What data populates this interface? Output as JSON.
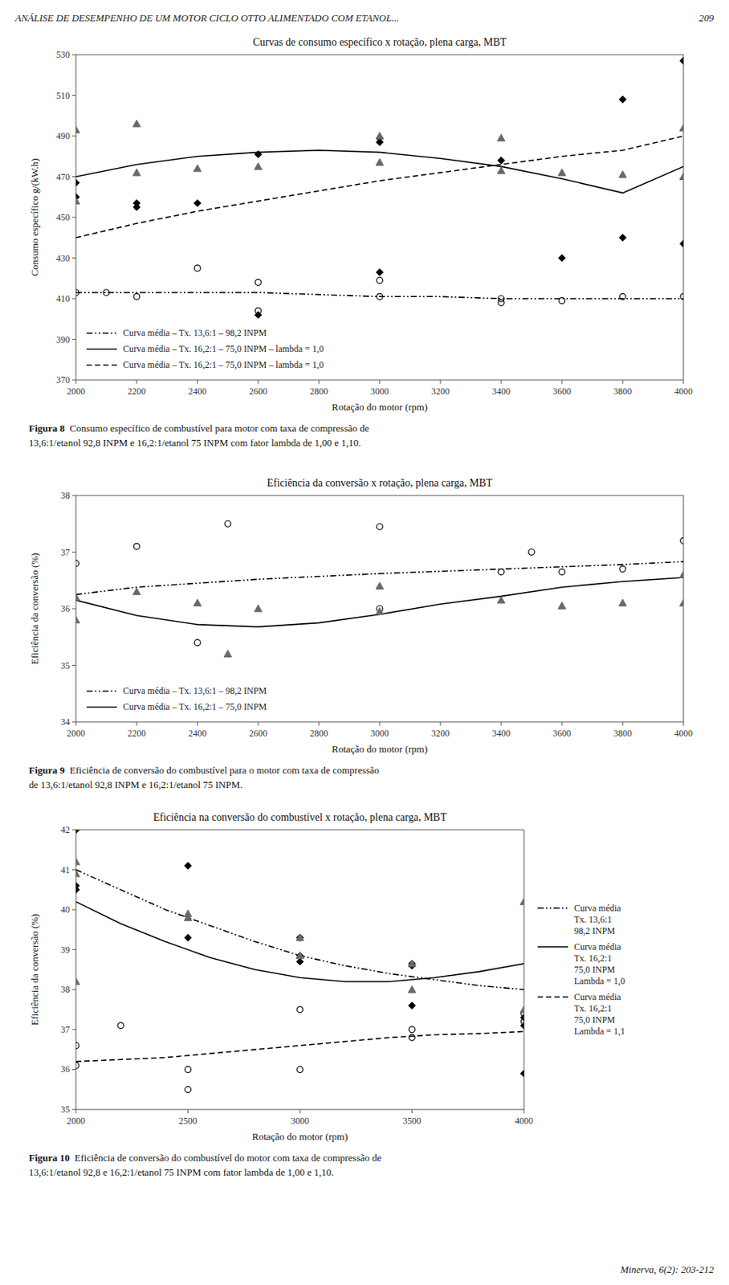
{
  "header": "ANÁLISE DE DESEMPENHO DE UM MOTOR CICLO OTTO ALIMENTADO COM ETANOL...",
  "page_number": "209",
  "footer": "Minerva, 6(2): 203-212",
  "chart_data": [
    {
      "type": "scatter",
      "title": "Curvas de consumo específico x rotação, plena carga, MBT",
      "xlabel": "Rotação do motor (rpm)",
      "ylabel": "Consumo específico g/(kW.h)",
      "xlim": [
        2000,
        4000
      ],
      "ylim": [
        370,
        530
      ],
      "xticks": [
        2000,
        2200,
        2400,
        2600,
        2800,
        3000,
        3200,
        3400,
        3600,
        3800,
        4000
      ],
      "yticks": [
        370,
        390,
        410,
        430,
        450,
        470,
        490,
        510,
        530
      ],
      "grid": false,
      "legend": "lower left",
      "caption": {
        "label": "Figura 8",
        "text": "  Consumo específico de combustível para motor com taxa de compressão de\n13,6:1/etanol 92,8 INPM e 16,2:1/etanol 75 INPM com fator lambda de 1,00 e 1,10."
      },
      "series": [
        {
          "type": "scatter",
          "marker": "circle-open",
          "color": "black",
          "x": [
            2000,
            2100,
            2200,
            2400,
            2600,
            2600,
            3000,
            3000,
            3400,
            3400,
            3600,
            3800,
            4000
          ],
          "values": [
            413,
            413,
            411,
            425,
            418,
            404,
            411,
            419,
            410,
            408,
            409,
            411,
            411
          ]
        },
        {
          "type": "scatter",
          "marker": "diamond",
          "color": "black",
          "x": [
            2000,
            2000,
            2200,
            2200,
            2400,
            2600,
            2600,
            3000,
            3000,
            3000,
            3400,
            3600,
            3800,
            3800,
            4000,
            4000
          ],
          "values": [
            467,
            460,
            457,
            455,
            457,
            481,
            402,
            489,
            487,
            423,
            478,
            430,
            440,
            508,
            437,
            527
          ]
        },
        {
          "type": "scatter",
          "marker": "triangle",
          "color": "dimgray",
          "x": [
            2000,
            2000,
            2200,
            2200,
            2400,
            2600,
            3000,
            3000,
            3400,
            3400,
            3600,
            3800,
            4000,
            4000
          ],
          "values": [
            493,
            458,
            496,
            472,
            474,
            475,
            490,
            477,
            489,
            473,
            472,
            471,
            494,
            470
          ]
        },
        {
          "type": "line",
          "name": "Curva média – Tx. 13,6:1 – 98,2 INPM",
          "line_style": "dash-dot-dot",
          "color": "black",
          "x": [
            2000,
            2200,
            2400,
            2600,
            2800,
            3000,
            3200,
            3400,
            3600,
            3800,
            4000
          ],
          "values": [
            413,
            413,
            413,
            413,
            412,
            411,
            411,
            410,
            410,
            410,
            410
          ]
        },
        {
          "type": "line",
          "name": "Curva média – Tx. 16,2:1 – 75,0 INPM – lambda = 1,0",
          "line_style": "solid",
          "color": "black",
          "x": [
            2000,
            2200,
            2400,
            2600,
            2800,
            3000,
            3200,
            3400,
            3600,
            3800,
            4000
          ],
          "values": [
            470,
            476,
            480,
            482,
            483,
            482,
            479,
            475,
            469,
            462,
            475
          ]
        },
        {
          "type": "line",
          "name": "Curva média – Tx. 16,2:1 – 75,0 INPM – lambda = 1,0",
          "line_style": "dashed",
          "color": "black",
          "x": [
            2000,
            2200,
            2400,
            2600,
            2800,
            3000,
            3200,
            3400,
            3600,
            3800,
            4000
          ],
          "values": [
            440,
            447,
            453,
            458,
            463,
            468,
            472,
            476,
            480,
            483,
            490
          ]
        }
      ]
    },
    {
      "type": "scatter",
      "title": "Eficiência da conversão x rotação, plena carga, MBT",
      "xlabel": "Rotação do motor (rpm)",
      "ylabel": "Eficiência da conversão (%)",
      "xlim": [
        2000,
        4000
      ],
      "ylim": [
        34,
        38
      ],
      "xticks": [
        2000,
        2200,
        2400,
        2600,
        2800,
        3000,
        3200,
        3400,
        3600,
        3800,
        4000
      ],
      "yticks": [
        34,
        35,
        36,
        37,
        38
      ],
      "grid": false,
      "legend": "lower left",
      "caption": {
        "label": "Figura 9",
        "text": "  Eficiência de conversão do combustível para o motor com taxa de compressão\nde 13,6:1/etanol 92,8 INPM e 16,2:1/etanol 75 INPM."
      },
      "series": [
        {
          "type": "scatter",
          "marker": "circle-open",
          "color": "black",
          "x": [
            2000,
            2200,
            2400,
            2500,
            3000,
            3000,
            3400,
            3500,
            3600,
            3800,
            4000
          ],
          "values": [
            36.8,
            37.1,
            35.4,
            37.5,
            36.0,
            37.45,
            36.65,
            37.0,
            36.65,
            36.7,
            37.2
          ]
        },
        {
          "type": "scatter",
          "marker": "triangle",
          "color": "dimgray",
          "x": [
            2000,
            2000,
            2200,
            2400,
            2500,
            2600,
            3000,
            3000,
            3400,
            3600,
            3800,
            4000,
            4000
          ],
          "values": [
            36.2,
            35.8,
            36.3,
            36.1,
            35.2,
            36.0,
            36.4,
            35.95,
            36.15,
            36.05,
            36.1,
            36.6,
            36.1
          ]
        },
        {
          "type": "line",
          "name": "Curva média – Tx. 13,6:1 – 98,2 INPM",
          "line_style": "dash-dot-dot",
          "color": "black",
          "x": [
            2000,
            2200,
            2400,
            2600,
            2800,
            3000,
            3200,
            3400,
            3600,
            3800,
            4000
          ],
          "values": [
            36.25,
            36.38,
            36.45,
            36.52,
            36.57,
            36.62,
            36.66,
            36.7,
            36.74,
            36.78,
            36.83
          ]
        },
        {
          "type": "line",
          "name": "Curva média – Tx. 16,2:1 – 75,0 INPM",
          "line_style": "solid",
          "color": "black",
          "x": [
            2000,
            2200,
            2400,
            2600,
            2800,
            3000,
            3200,
            3400,
            3600,
            3800,
            4000
          ],
          "values": [
            36.15,
            35.88,
            35.72,
            35.68,
            35.75,
            35.9,
            36.08,
            36.22,
            36.38,
            36.48,
            36.55
          ]
        }
      ]
    },
    {
      "type": "scatter",
      "title": "Eficiência na conversão do combustível x rotação, plena carga, MBT",
      "xlabel": "Rotação do motor (rpm)",
      "ylabel": "Eficiência da conversão (%)",
      "xlim": [
        2000,
        4000
      ],
      "ylim": [
        35,
        42
      ],
      "xticks": [
        2000,
        2500,
        3000,
        3500,
        4000
      ],
      "yticks": [
        35,
        36,
        37,
        38,
        39,
        40,
        41,
        42
      ],
      "grid": false,
      "legend": "right",
      "caption": {
        "label": "Figura 10",
        "text": "  Eficiência de conversão do combustível do motor com taxa de compressão de\n13,6:1/etanol 92,8 e 16,2:1/etanol 75 INPM com fator lambda de 1,00 e 1,10."
      },
      "series": [
        {
          "type": "scatter",
          "marker": "circle-open",
          "color": "black",
          "x": [
            2000,
            2000,
            2200,
            2500,
            2500,
            3000,
            3000,
            3500,
            3500,
            4000,
            4000
          ],
          "values": [
            36.6,
            36.1,
            37.1,
            35.5,
            36.0,
            37.5,
            36.0,
            37.0,
            36.8,
            37.2,
            37.4
          ]
        },
        {
          "type": "scatter",
          "marker": "diamond",
          "color": "black",
          "x": [
            2000,
            2000,
            2000,
            2500,
            2500,
            3000,
            3000,
            3000,
            3500,
            3500,
            3500,
            4000,
            4000,
            4000
          ],
          "values": [
            42.0,
            40.5,
            40.6,
            41.1,
            39.3,
            39.3,
            38.85,
            38.7,
            38.65,
            37.6,
            38.6,
            37.3,
            37.1,
            35.9
          ]
        },
        {
          "type": "scatter",
          "marker": "triangle",
          "color": "dimgray",
          "x": [
            2000,
            2000,
            2000,
            2500,
            2500,
            3000,
            3000,
            3500,
            3500,
            4000,
            4000
          ],
          "values": [
            41.2,
            40.9,
            38.2,
            39.9,
            39.8,
            39.3,
            38.85,
            38.0,
            38.65,
            40.2,
            37.5
          ]
        },
        {
          "type": "line",
          "name": "Curva média\nTx. 13,6:1\n98,2 INPM",
          "line_style": "dash-dot-dot",
          "color": "black",
          "x": [
            2000,
            2200,
            2400,
            2600,
            2800,
            3000,
            3200,
            3400,
            3600,
            3800,
            4000
          ],
          "values": [
            41.0,
            40.5,
            40.0,
            39.6,
            39.2,
            38.85,
            38.6,
            38.4,
            38.25,
            38.1,
            38.0
          ]
        },
        {
          "type": "line",
          "name": "Curva média\nTx. 16,2:1\n75,0 INPM\nLambda = 1,0",
          "line_style": "solid",
          "color": "black",
          "x": [
            2000,
            2200,
            2400,
            2600,
            2800,
            3000,
            3200,
            3400,
            3600,
            3800,
            4000
          ],
          "values": [
            40.2,
            39.65,
            39.2,
            38.8,
            38.5,
            38.3,
            38.2,
            38.2,
            38.3,
            38.45,
            38.65
          ]
        },
        {
          "type": "line",
          "name": "Curva média\nTx. 16,2:1\n75,0 INPM\nLambda = 1,1",
          "line_style": "dashed",
          "color": "black",
          "x": [
            2000,
            2200,
            2400,
            2600,
            2800,
            3000,
            3200,
            3400,
            3600,
            3800,
            4000
          ],
          "values": [
            36.2,
            36.25,
            36.3,
            36.4,
            36.5,
            36.6,
            36.7,
            36.8,
            36.87,
            36.9,
            36.95
          ]
        }
      ]
    }
  ]
}
